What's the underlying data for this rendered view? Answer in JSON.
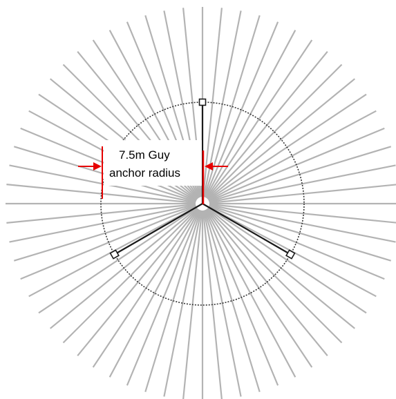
{
  "annotation": {
    "line1": "7.5m Guy",
    "line2": "anchor radius"
  },
  "colors": {
    "radial_lines": "#b3b3b3",
    "guy_wires": "#1a1a1a",
    "circle": "#333333",
    "dimension": "#e60000",
    "background": "#ffffff"
  },
  "radial_line_count": 64,
  "guy_anchor_bearings_deg": [
    0,
    120,
    240
  ]
}
